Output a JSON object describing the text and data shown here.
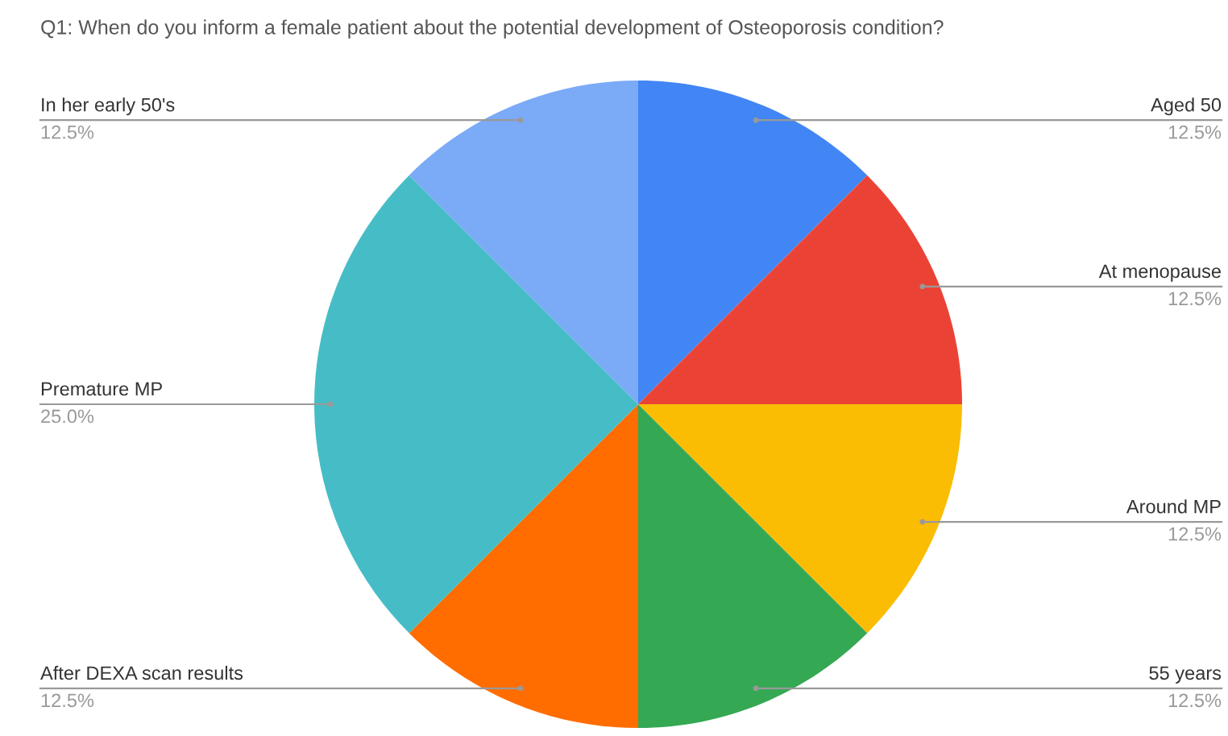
{
  "chart_data": {
    "type": "pie",
    "title": "Q1: When do you inform a female patient about the potential development of Osteoporosis condition?",
    "categories": [
      "Aged 50",
      "At menopause",
      "Around MP",
      "55 years",
      "After DEXA scan results",
      "Premature MP",
      "In her early 50's"
    ],
    "values": [
      12.5,
      12.5,
      12.5,
      12.5,
      12.5,
      25.0,
      12.5
    ],
    "value_labels": [
      "12.5%",
      "12.5%",
      "12.5%",
      "12.5%",
      "12.5%",
      "25.0%",
      "12.5%"
    ],
    "colors": [
      "#4285f4",
      "#ea4335",
      "#fbbc04",
      "#34a853",
      "#ff6d01",
      "#46bdc6",
      "#7baaf7"
    ]
  }
}
